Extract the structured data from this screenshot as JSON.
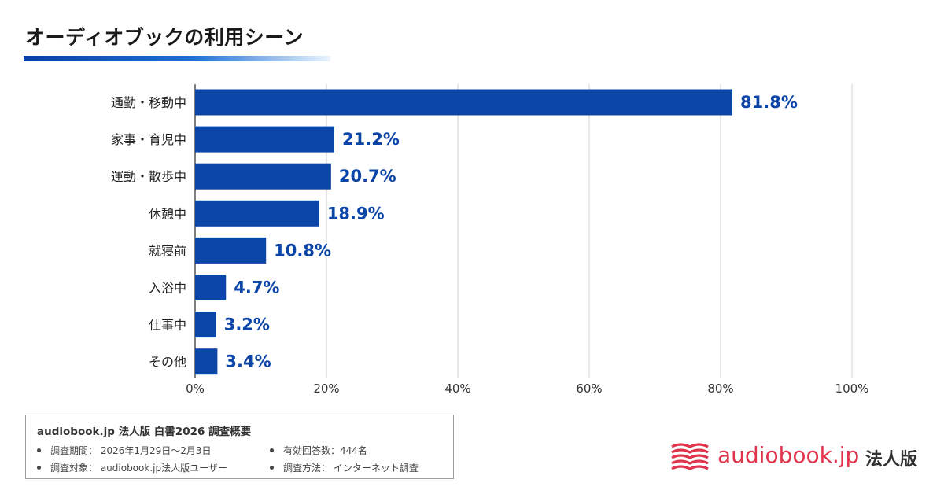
{
  "title": "オーディオブックの利用シーン",
  "chart_data": {
    "type": "bar",
    "orientation": "horizontal",
    "title": "オーディオブックの利用シーン",
    "categories": [
      "通勤・移動中",
      "家事・育児中",
      "運動・散歩中",
      "休憩中",
      "就寝前",
      "入浴中",
      "仕事中",
      "その他"
    ],
    "values": [
      81.8,
      21.2,
      20.7,
      18.9,
      10.8,
      4.7,
      3.2,
      3.4
    ],
    "value_labels": [
      "81.8%",
      "21.2%",
      "20.7%",
      "18.9%",
      "10.8%",
      "4.7%",
      "3.2%",
      "3.4%"
    ],
    "xlim": [
      0,
      100
    ],
    "xticks": [
      0,
      20,
      40,
      60,
      80,
      100
    ],
    "xtick_labels": [
      "0%",
      "20%",
      "40%",
      "60%",
      "80%",
      "100%"
    ],
    "xlabel": "",
    "ylabel": "",
    "grid": "vertical",
    "bar_color": "#0b45a8",
    "label_color": "#0b45a8"
  },
  "summary": {
    "title": "audiobook.jp 法人版 白書2026 調査概要",
    "items": [
      "調査期間： 2026年1月29日〜2月3日",
      "調査対象： audiobook.jp法人版ユーザー",
      "有効回答数：444名",
      "調査方法： インターネット調査"
    ]
  },
  "logo": {
    "text": "audiobook.jp",
    "suffix": "法人版",
    "color": "#e0334c"
  }
}
